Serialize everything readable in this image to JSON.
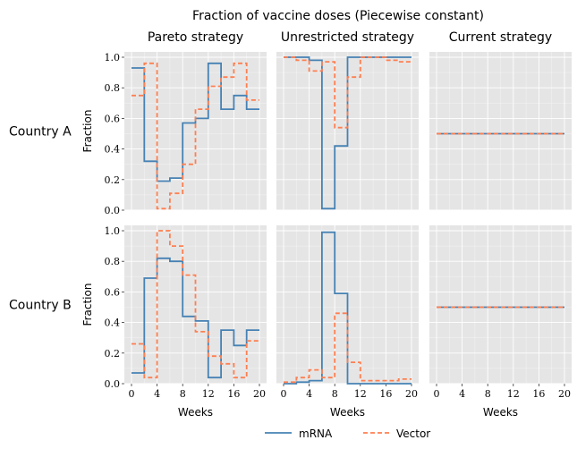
{
  "title": "Fraction of vaccine doses (Piecewise constant)",
  "columns": [
    "Pareto strategy",
    "Unrestricted strategy",
    "Current strategy"
  ],
  "rows": [
    "Country A",
    "Country B"
  ],
  "legend": {
    "labels": [
      "mRNA",
      "Vector"
    ],
    "placement": "bottom-center"
  },
  "colors": {
    "mRNA": "#4682b4",
    "Vector": "#ff7f50",
    "panel_bg": "#e5e5e5",
    "grid": "#ffffff"
  },
  "chart_data": {
    "type": "line",
    "step": "post",
    "title": "Fraction of vaccine doses (Piecewise constant)",
    "xlabel": "Weeks",
    "ylabel": "Fraction",
    "xlim": [
      0,
      20
    ],
    "ylim": [
      0,
      1.0
    ],
    "xticks": [
      0,
      4,
      8,
      12,
      16,
      20
    ],
    "yticks": [
      0.0,
      0.2,
      0.4,
      0.6,
      0.8,
      1.0
    ],
    "ytick_labels": [
      "0.0",
      "0.2",
      "0.4",
      "0.6",
      "0.8",
      "1.0"
    ],
    "grid": true,
    "x_breaks": [
      0,
      2,
      4,
      6,
      8,
      10,
      12,
      14,
      16,
      18,
      20
    ],
    "panels": [
      {
        "row": "Country A",
        "column": "Pareto strategy",
        "series": [
          {
            "name": "mRNA",
            "values": [
              0.93,
              0.32,
              0.19,
              0.21,
              0.57,
              0.6,
              0.96,
              0.66,
              0.75,
              0.66
            ]
          },
          {
            "name": "Vector",
            "values": [
              0.75,
              0.96,
              0.01,
              0.11,
              0.3,
              0.66,
              0.81,
              0.87,
              0.96,
              0.72
            ]
          }
        ]
      },
      {
        "row": "Country A",
        "column": "Unrestricted strategy",
        "series": [
          {
            "name": "mRNA",
            "values": [
              1.0,
              1.0,
              0.98,
              0.01,
              0.42,
              1.0,
              1.0,
              1.0,
              1.0,
              1.0
            ]
          },
          {
            "name": "Vector",
            "values": [
              1.0,
              0.98,
              0.91,
              0.97,
              0.54,
              0.87,
              1.0,
              1.0,
              0.98,
              0.97
            ]
          }
        ]
      },
      {
        "row": "Country A",
        "column": "Current strategy",
        "series": [
          {
            "name": "mRNA",
            "values": [
              0.5,
              0.5,
              0.5,
              0.5,
              0.5,
              0.5,
              0.5,
              0.5,
              0.5,
              0.5
            ]
          },
          {
            "name": "Vector",
            "values": [
              0.5,
              0.5,
              0.5,
              0.5,
              0.5,
              0.5,
              0.5,
              0.5,
              0.5,
              0.5
            ]
          }
        ]
      },
      {
        "row": "Country B",
        "column": "Pareto strategy",
        "series": [
          {
            "name": "mRNA",
            "values": [
              0.07,
              0.69,
              0.82,
              0.8,
              0.44,
              0.41,
              0.04,
              0.35,
              0.25,
              0.35
            ]
          },
          {
            "name": "Vector",
            "values": [
              0.26,
              0.04,
              1.0,
              0.9,
              0.71,
              0.34,
              0.18,
              0.13,
              0.04,
              0.28
            ]
          }
        ]
      },
      {
        "row": "Country B",
        "column": "Unrestricted strategy",
        "series": [
          {
            "name": "mRNA",
            "values": [
              0.0,
              0.01,
              0.02,
              0.99,
              0.59,
              0.0,
              0.0,
              0.0,
              0.0,
              0.0
            ]
          },
          {
            "name": "Vector",
            "values": [
              0.01,
              0.04,
              0.09,
              0.04,
              0.46,
              0.14,
              0.02,
              0.02,
              0.02,
              0.03
            ]
          }
        ]
      },
      {
        "row": "Country B",
        "column": "Current strategy",
        "series": [
          {
            "name": "mRNA",
            "values": [
              0.5,
              0.5,
              0.5,
              0.5,
              0.5,
              0.5,
              0.5,
              0.5,
              0.5,
              0.5
            ]
          },
          {
            "name": "Vector",
            "values": [
              0.5,
              0.5,
              0.5,
              0.5,
              0.5,
              0.5,
              0.5,
              0.5,
              0.5,
              0.5
            ]
          }
        ]
      }
    ]
  }
}
